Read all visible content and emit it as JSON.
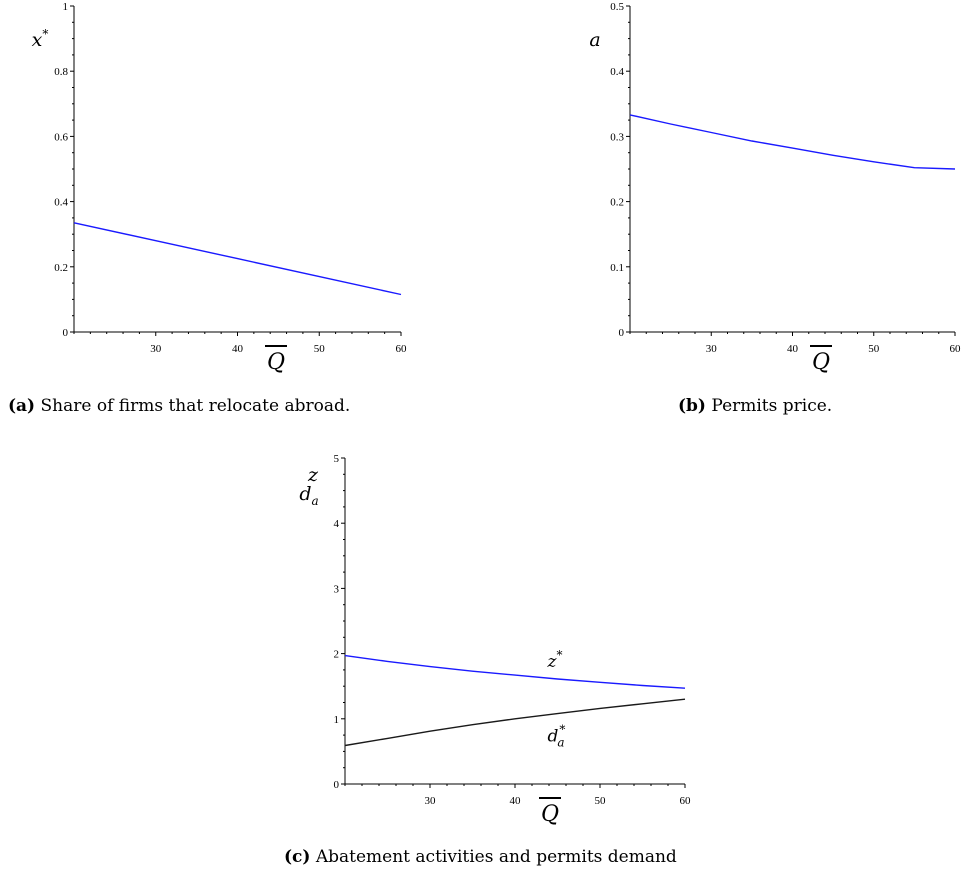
{
  "chart_data": [
    {
      "id": "a",
      "type": "line",
      "caption_tag": "(a)",
      "caption": "Share of firms that relocate abroad.",
      "xlabel": "Q",
      "ylabel_main": "x",
      "ylabel_sup": "*",
      "xlim": [
        20,
        60
      ],
      "ylim": [
        0,
        1
      ],
      "xticks": [
        30,
        40,
        50,
        60
      ],
      "yticks": [
        0,
        0.2,
        0.4,
        0.6,
        0.8,
        1
      ],
      "ytick_labels": [
        "0",
        "0.2",
        "0.4",
        "0.6",
        "0.8",
        "1"
      ],
      "series": [
        {
          "color": "#1a1aff",
          "x": [
            20,
            30,
            40,
            50,
            60
          ],
          "y": [
            0.335,
            0.28,
            0.225,
            0.17,
            0.115
          ]
        }
      ]
    },
    {
      "id": "b",
      "type": "line",
      "caption_tag": "(b)",
      "caption": "Permits price.",
      "xlabel": "Q",
      "ylabel_main": "a",
      "ylabel_sup": "",
      "xlim": [
        20,
        60
      ],
      "ylim": [
        0,
        0.5
      ],
      "xticks": [
        30,
        40,
        50,
        60
      ],
      "yticks": [
        0,
        0.1,
        0.2,
        0.3,
        0.4,
        0.5
      ],
      "ytick_labels": [
        "0",
        "0.1",
        "0.2",
        "0.3",
        "0.4",
        "0.5"
      ],
      "series": [
        {
          "color": "#1a1aff",
          "x": [
            20,
            25,
            30,
            35,
            40,
            45,
            50,
            55,
            60
          ],
          "y": [
            0.333,
            0.319,
            0.306,
            0.293,
            0.282,
            0.271,
            0.261,
            0.252,
            0.25
          ]
        }
      ]
    },
    {
      "id": "c",
      "type": "line",
      "caption_tag": "(c)",
      "caption": "Abatement activities and permits demand",
      "xlabel": "Q",
      "ylabel_lines": [
        "z",
        "d"
      ],
      "ylabel_sub": "a",
      "xlim": [
        20,
        60
      ],
      "ylim": [
        0,
        5
      ],
      "xticks": [
        30,
        40,
        50,
        60
      ],
      "yticks": [
        0,
        1,
        2,
        3,
        4,
        5
      ],
      "ytick_labels": [
        "0",
        "1",
        "2",
        "3",
        "4",
        "5"
      ],
      "series": [
        {
          "name": "z*",
          "label_main": "z",
          "label_sup": "*",
          "label_sub": "",
          "color": "#1a1aff",
          "x": [
            20,
            25,
            30,
            35,
            40,
            45,
            50,
            55,
            60
          ],
          "y": [
            1.97,
            1.88,
            1.8,
            1.73,
            1.67,
            1.61,
            1.56,
            1.51,
            1.47
          ]
        },
        {
          "name": "d*a",
          "label_main": "d",
          "label_sup": "*",
          "label_sub": "a",
          "color": "#1a1a1a",
          "x": [
            20,
            25,
            30,
            35,
            40,
            45,
            50,
            55,
            60
          ],
          "y": [
            0.59,
            0.7,
            0.81,
            0.91,
            1.0,
            1.08,
            1.16,
            1.23,
            1.3
          ]
        }
      ]
    }
  ]
}
